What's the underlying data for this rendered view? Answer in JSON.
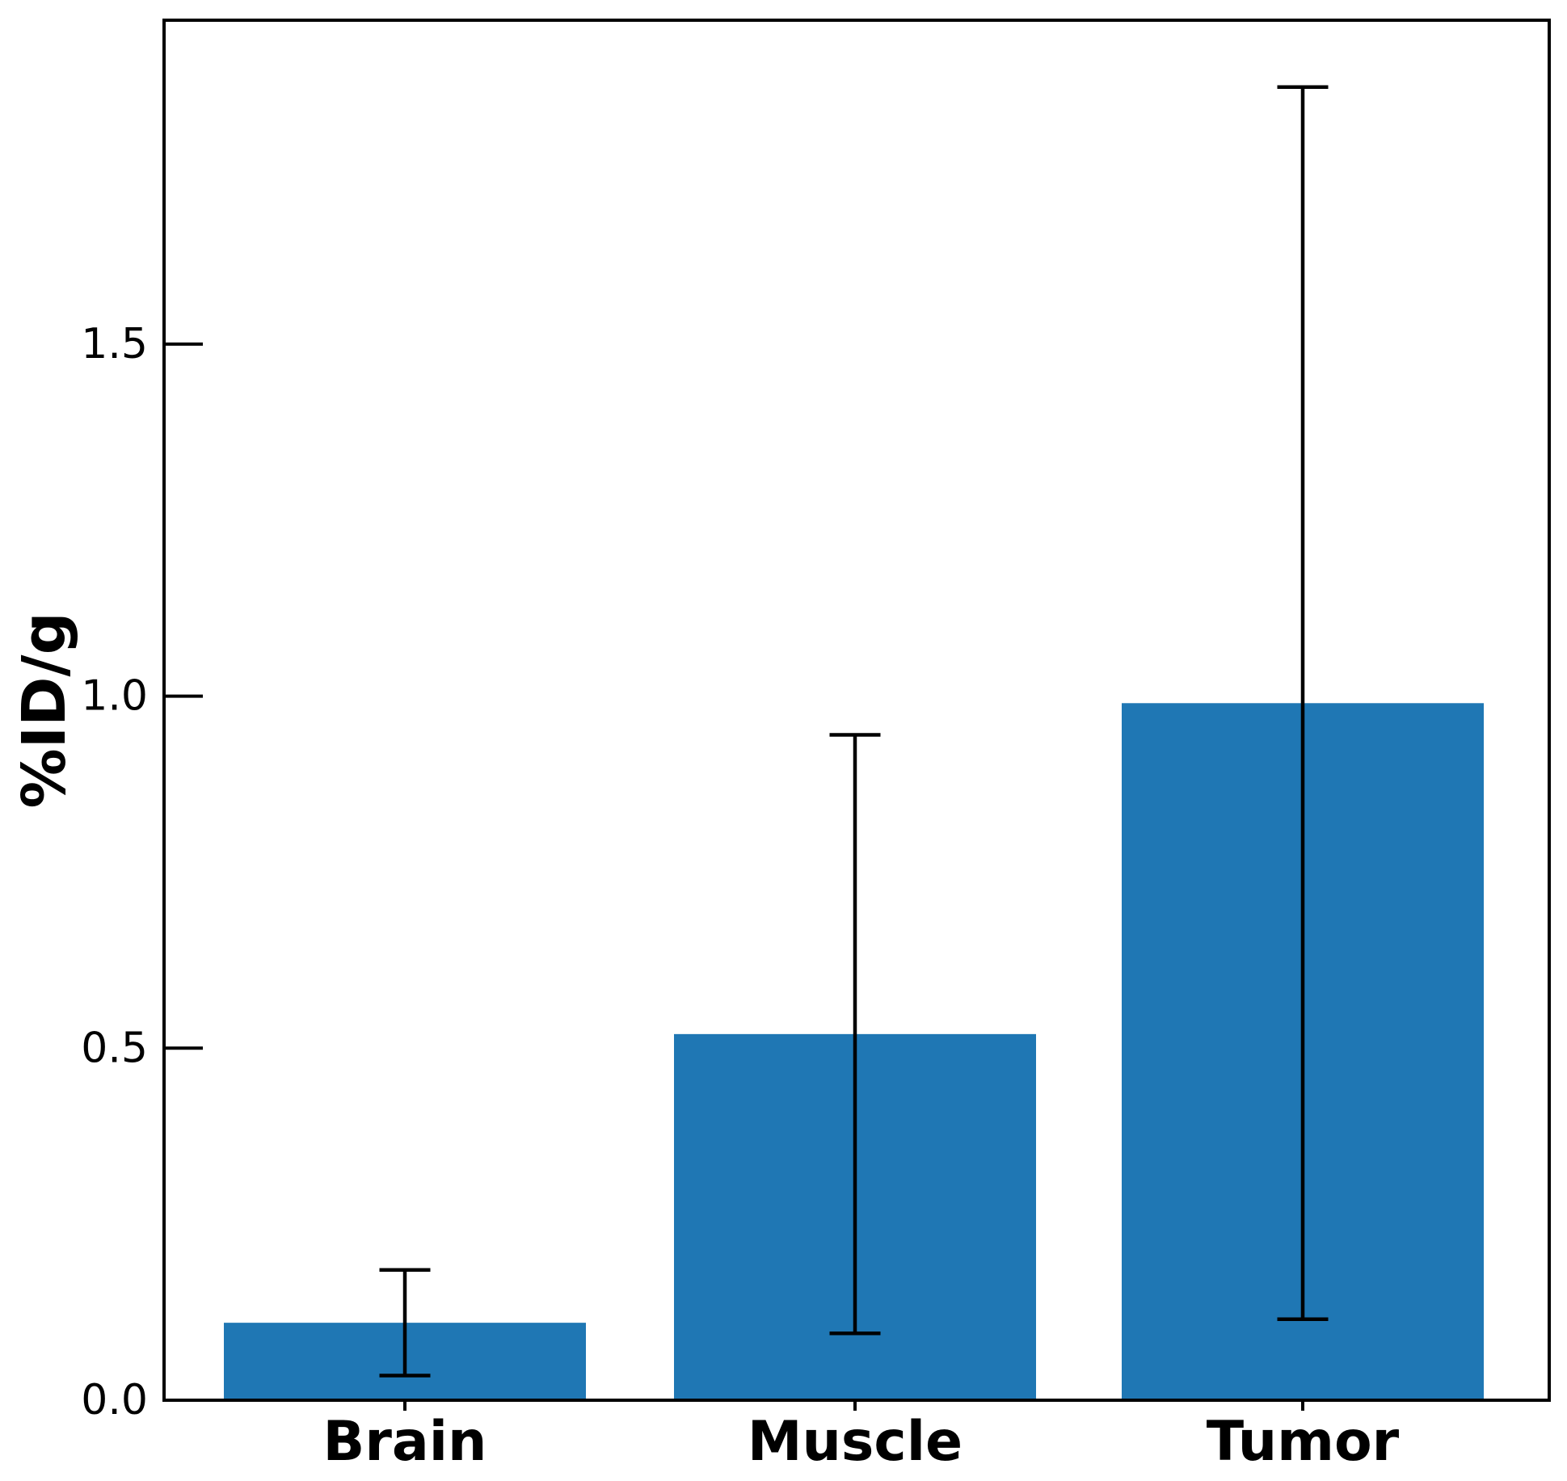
{
  "chart_data": {
    "type": "bar",
    "title": "",
    "categories": [
      "Brain",
      "Muscle",
      "Tumor"
    ],
    "values": [
      0.11,
      0.52,
      0.99
    ],
    "errors": [
      0.075,
      0.425,
      0.875
    ],
    "xlabel": "",
    "ylabel": "%ID/g",
    "ylim": [
      0,
      1.96
    ],
    "yticks": [
      0.0,
      0.5,
      1.0,
      1.5
    ],
    "ytick_labels": [
      "0.0",
      "0.5",
      "1.0",
      "1.5"
    ],
    "bar_color": "#1f77b4",
    "error_color": "#000000",
    "axis_color": "#000000",
    "background": "#ffffff",
    "grid": false,
    "legend": false,
    "error_caps": true
  }
}
